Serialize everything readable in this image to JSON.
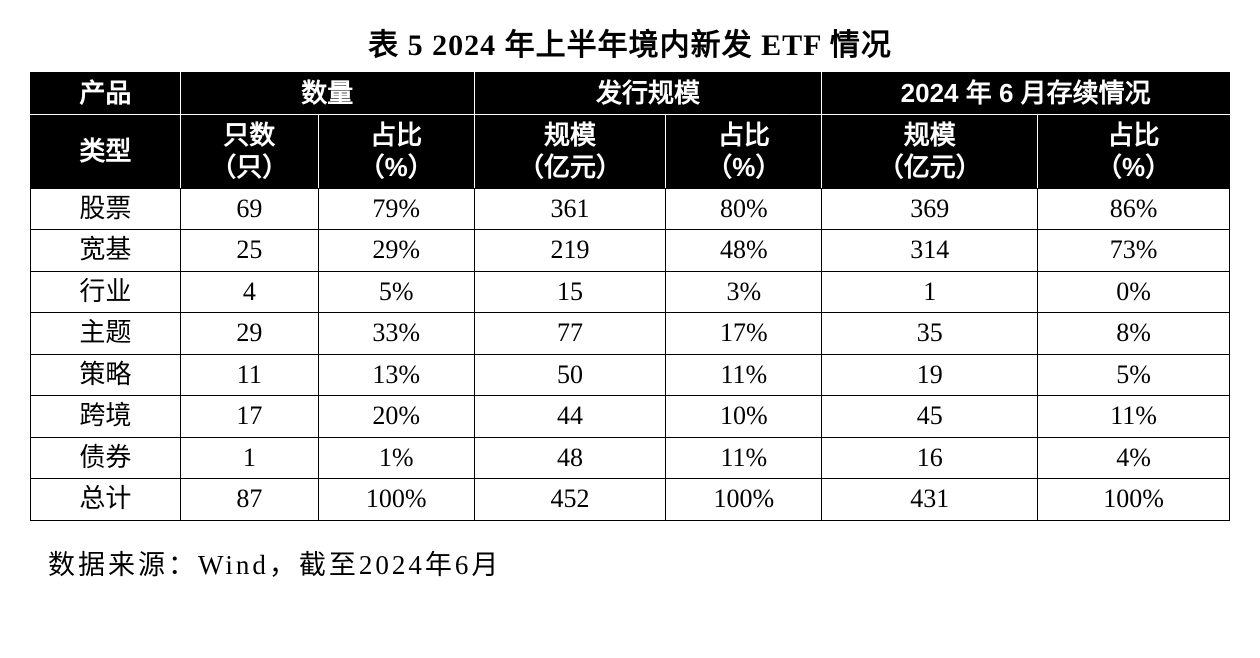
{
  "title": "表 5    2024 年上半年境内新发 ETF 情况",
  "header": {
    "type_top": "产品",
    "type_bottom": "类型",
    "group_qty": "数量",
    "group_issue": "发行规模",
    "group_exist": "2024 年 6 月存续情况",
    "count": "只数",
    "count_unit": "（只）",
    "pct": "占比",
    "pct_unit": "（%）",
    "size": "规模",
    "size_unit_yi": "（亿元）"
  },
  "rows": [
    {
      "type": "股票",
      "count": "69",
      "count_pct": "79%",
      "issue_size": "361",
      "issue_pct": "80%",
      "exist_size": "369",
      "exist_pct": "86%"
    },
    {
      "type": "宽基",
      "count": "25",
      "count_pct": "29%",
      "issue_size": "219",
      "issue_pct": "48%",
      "exist_size": "314",
      "exist_pct": "73%"
    },
    {
      "type": "行业",
      "count": "4",
      "count_pct": "5%",
      "issue_size": "15",
      "issue_pct": "3%",
      "exist_size": "1",
      "exist_pct": "0%"
    },
    {
      "type": "主题",
      "count": "29",
      "count_pct": "33%",
      "issue_size": "77",
      "issue_pct": "17%",
      "exist_size": "35",
      "exist_pct": "8%"
    },
    {
      "type": "策略",
      "count": "11",
      "count_pct": "13%",
      "issue_size": "50",
      "issue_pct": "11%",
      "exist_size": "19",
      "exist_pct": "5%"
    },
    {
      "type": "跨境",
      "count": "17",
      "count_pct": "20%",
      "issue_size": "44",
      "issue_pct": "10%",
      "exist_size": "45",
      "exist_pct": "11%"
    },
    {
      "type": "债券",
      "count": "1",
      "count_pct": "1%",
      "issue_size": "48",
      "issue_pct": "11%",
      "exist_size": "16",
      "exist_pct": "4%"
    },
    {
      "type": "总计",
      "count": "87",
      "count_pct": "100%",
      "issue_size": "452",
      "issue_pct": "100%",
      "exist_size": "431",
      "exist_pct": "100%"
    }
  ],
  "source": "数据来源：Wind，截至2024年6月",
  "style": {
    "header_bg": "#000000",
    "header_fg": "#ffffff",
    "border_color": "#000000",
    "body_bg": "#ffffff",
    "font_body_pt": 26,
    "font_title_pt": 30,
    "font_source_pt": 27,
    "column_widths_pct": [
      12.5,
      11.5,
      13,
      16,
      13,
      18,
      16
    ]
  }
}
